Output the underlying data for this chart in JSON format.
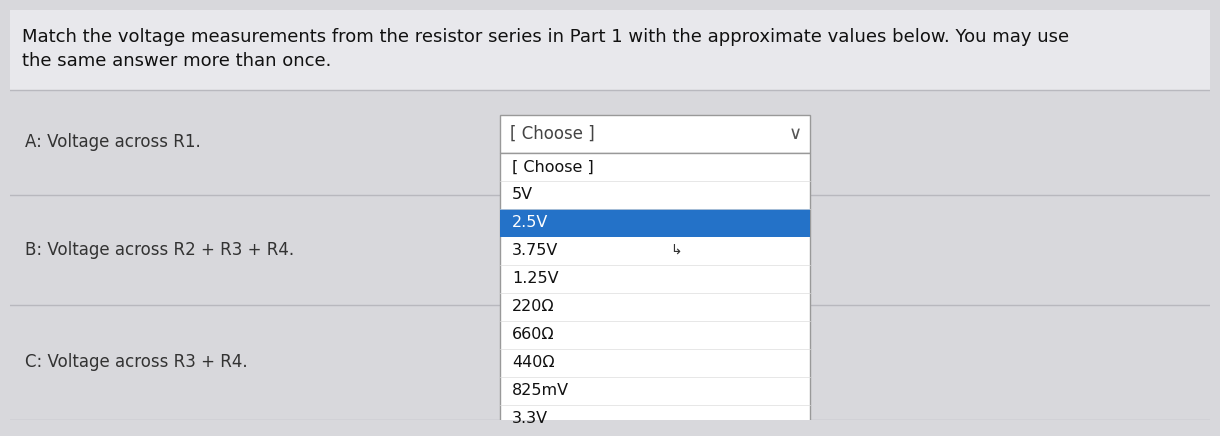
{
  "title_line1": "Match the voltage measurements from the resistor series in Part 1 with the approximate values below. You may use",
  "title_line2": "the same answer more than once.",
  "bg_color": "#d8d8dc",
  "questions": [
    "A: Voltage across R1.",
    "B: Voltage across R2 + R3 + R4.",
    "C: Voltage across R3 + R4."
  ],
  "dropdown_label": "[ Choose ]",
  "dropdown_items": [
    {
      "text": "[ Choose ]",
      "highlighted": false
    },
    {
      "text": "5V",
      "highlighted": false
    },
    {
      "text": "2.5V",
      "highlighted": true
    },
    {
      "text": "3.75V",
      "highlighted": false
    },
    {
      "text": "1.25V",
      "highlighted": false
    },
    {
      "text": "220Ω",
      "highlighted": false
    },
    {
      "text": "660Ω",
      "highlighted": false
    },
    {
      "text": "440Ω",
      "highlighted": false
    },
    {
      "text": "825mV",
      "highlighted": false
    },
    {
      "text": "3.3V",
      "highlighted": false
    }
  ],
  "highlight_color": "#2472c8",
  "highlight_text_color": "#ffffff",
  "normal_text_color": "#111111",
  "dropdown_border_color": "#999999",
  "separator_color": "#b8b8be",
  "title_font_size": 13,
  "question_font_size": 12,
  "dropdown_font_size": 11.5,
  "choose_font_size": 12,
  "dropdown_arrow": "∨",
  "cursor_char": "↳"
}
